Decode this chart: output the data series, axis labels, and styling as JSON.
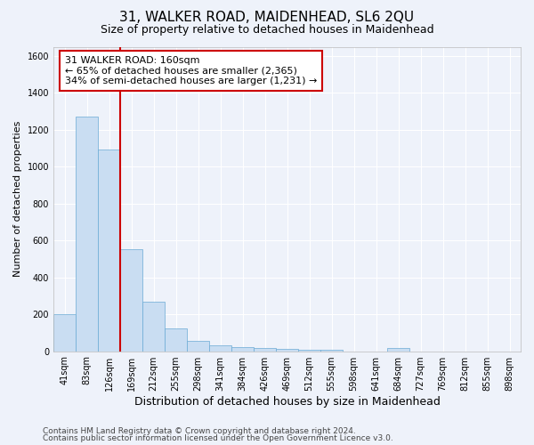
{
  "title": "31, WALKER ROAD, MAIDENHEAD, SL6 2QU",
  "subtitle": "Size of property relative to detached houses in Maidenhead",
  "xlabel": "Distribution of detached houses by size in Maidenhead",
  "ylabel": "Number of detached properties",
  "categories": [
    "41sqm",
    "83sqm",
    "126sqm",
    "169sqm",
    "212sqm",
    "255sqm",
    "298sqm",
    "341sqm",
    "384sqm",
    "426sqm",
    "469sqm",
    "512sqm",
    "555sqm",
    "598sqm",
    "641sqm",
    "684sqm",
    "727sqm",
    "769sqm",
    "812sqm",
    "855sqm",
    "898sqm"
  ],
  "values": [
    200,
    1270,
    1095,
    555,
    270,
    125,
    58,
    32,
    22,
    15,
    12,
    10,
    10,
    0,
    0,
    18,
    0,
    0,
    0,
    0,
    0
  ],
  "bar_color": "#c9ddf2",
  "bar_edge_color": "#6aaad4",
  "vline_x": 3.0,
  "vline_color": "#cc0000",
  "annotation_text": "31 WALKER ROAD: 160sqm\n← 65% of detached houses are smaller (2,365)\n34% of semi-detached houses are larger (1,231) →",
  "annotation_box_color": "#cc0000",
  "ylim": [
    0,
    1650
  ],
  "yticks": [
    0,
    200,
    400,
    600,
    800,
    1000,
    1200,
    1400,
    1600
  ],
  "background_color": "#eef2fa",
  "grid_color": "#ffffff",
  "footer_line1": "Contains HM Land Registry data © Crown copyright and database right 2024.",
  "footer_line2": "Contains public sector information licensed under the Open Government Licence v3.0.",
  "title_fontsize": 11,
  "subtitle_fontsize": 9,
  "ylabel_fontsize": 8,
  "xlabel_fontsize": 9,
  "tick_fontsize": 7,
  "annotation_fontsize": 8,
  "footer_fontsize": 6.5
}
